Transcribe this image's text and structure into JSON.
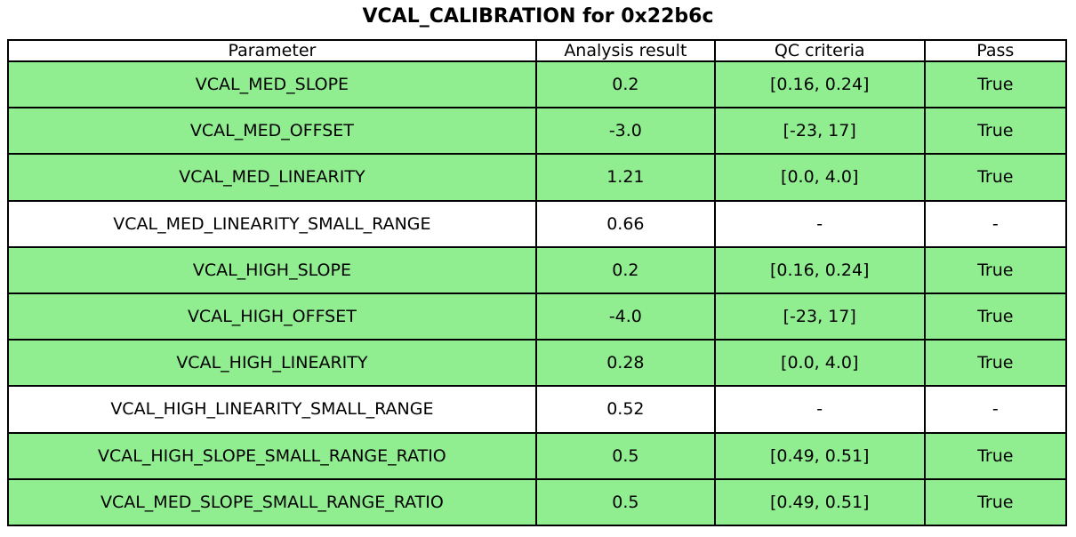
{
  "chart_data": {
    "type": "table",
    "title": "VCAL_CALIBRATION for 0x22b6c",
    "columns": [
      "Parameter",
      "Analysis result",
      "QC criteria",
      "Pass"
    ],
    "rows": [
      {
        "parameter": "VCAL_MED_SLOPE",
        "result": "0.2",
        "criteria": "[0.16, 0.24]",
        "pass": "True",
        "highlighted": true
      },
      {
        "parameter": "VCAL_MED_OFFSET",
        "result": "-3.0",
        "criteria": "[-23, 17]",
        "pass": "True",
        "highlighted": true
      },
      {
        "parameter": "VCAL_MED_LINEARITY",
        "result": "1.21",
        "criteria": "[0.0, 4.0]",
        "pass": "True",
        "highlighted": true
      },
      {
        "parameter": "VCAL_MED_LINEARITY_SMALL_RANGE",
        "result": "0.66",
        "criteria": "-",
        "pass": "-",
        "highlighted": false
      },
      {
        "parameter": "VCAL_HIGH_SLOPE",
        "result": "0.2",
        "criteria": "[0.16, 0.24]",
        "pass": "True",
        "highlighted": true
      },
      {
        "parameter": "VCAL_HIGH_OFFSET",
        "result": "-4.0",
        "criteria": "[-23, 17]",
        "pass": "True",
        "highlighted": true
      },
      {
        "parameter": "VCAL_HIGH_LINEARITY",
        "result": "0.28",
        "criteria": "[0.0, 4.0]",
        "pass": "True",
        "highlighted": true
      },
      {
        "parameter": "VCAL_HIGH_LINEARITY_SMALL_RANGE",
        "result": "0.52",
        "criteria": "-",
        "pass": "-",
        "highlighted": false
      },
      {
        "parameter": "VCAL_HIGH_SLOPE_SMALL_RANGE_RATIO",
        "result": "0.5",
        "criteria": "[0.49, 0.51]",
        "pass": "True",
        "highlighted": true
      },
      {
        "parameter": "VCAL_MED_SLOPE_SMALL_RANGE_RATIO",
        "result": "0.5",
        "criteria": "[0.49, 0.51]",
        "pass": "True",
        "highlighted": true
      }
    ],
    "colors": {
      "pass_row": "#90EE90",
      "neutral_row": "#FFFFFF",
      "border": "#000000",
      "text": "#000000"
    },
    "layout": {
      "legend": "none",
      "grid": "table-borders",
      "header_background": "#FFFFFF"
    }
  }
}
